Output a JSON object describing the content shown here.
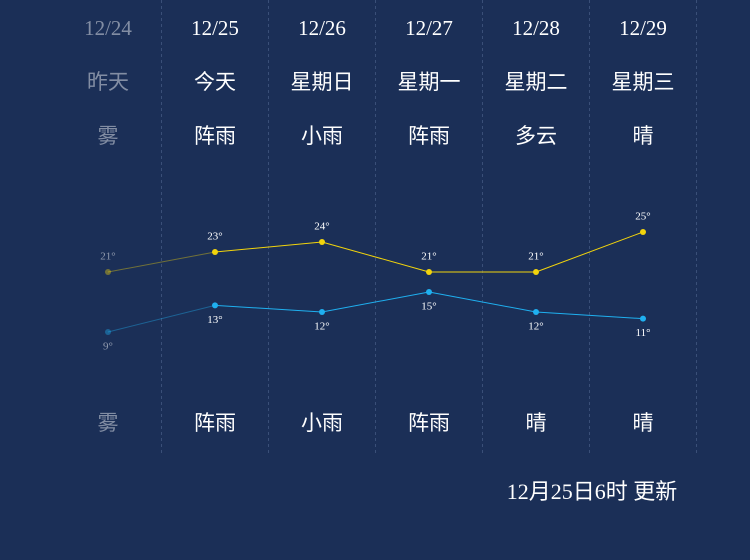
{
  "days": [
    {
      "date": "12/24",
      "weekday": "昨天",
      "weather_day": "雾",
      "weather_night": "雾"
    },
    {
      "date": "12/25",
      "weekday": "今天",
      "weather_day": "阵雨",
      "weather_night": "阵雨"
    },
    {
      "date": "12/26",
      "weekday": "星期日",
      "weather_day": "小雨",
      "weather_night": "小雨"
    },
    {
      "date": "12/27",
      "weekday": "星期一",
      "weather_day": "阵雨",
      "weather_night": "阵雨"
    },
    {
      "date": "12/28",
      "weekday": "星期二",
      "weather_day": "多云",
      "weather_night": "晴"
    },
    {
      "date": "12/29",
      "weekday": "星期三",
      "weather_day": "晴",
      "weather_night": "晴"
    }
  ],
  "high": {
    "color": "#f2d40c",
    "values": [
      21,
      23,
      24,
      21,
      21,
      25
    ],
    "value_labels": [
      "21°",
      "23°",
      "24°",
      "21°",
      "21°",
      "25°"
    ]
  },
  "low": {
    "color": "#1fb0f0",
    "values": [
      9,
      13,
      12,
      15,
      12,
      11
    ],
    "value_labels": [
      "9°",
      "13°",
      "12°",
      "15°",
      "12°",
      "11°"
    ]
  },
  "updated": "12月25日6时 更新"
}
